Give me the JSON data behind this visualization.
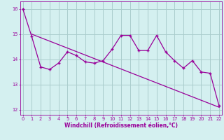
{
  "xlabel": "Windchill (Refroidissement éolien,°C)",
  "x_hours": [
    0,
    1,
    2,
    3,
    4,
    5,
    6,
    7,
    8,
    9,
    10,
    11,
    12,
    13,
    14,
    15,
    16,
    17,
    18,
    19,
    20,
    21,
    22
  ],
  "windchill_line": [
    16.0,
    14.9,
    13.7,
    13.6,
    13.85,
    14.3,
    14.15,
    13.9,
    13.85,
    13.95,
    14.4,
    14.95,
    14.95,
    14.35,
    14.35,
    14.95,
    14.3,
    13.95,
    13.65,
    13.95,
    13.5,
    13.45,
    12.15
  ],
  "trend_line_start": 15.0,
  "trend_line_end": 12.1,
  "trend_x_start": 1,
  "trend_x_end": 22,
  "line_color": "#990099",
  "bg_color": "#d4f0f0",
  "grid_color": "#aacccc",
  "ylim_min": 11.8,
  "ylim_max": 16.3,
  "yticks": [
    12,
    13,
    14,
    15,
    16
  ],
  "xticks": [
    0,
    1,
    2,
    3,
    4,
    5,
    6,
    7,
    8,
    9,
    10,
    11,
    12,
    13,
    14,
    15,
    16,
    17,
    18,
    19,
    20,
    21,
    22
  ]
}
